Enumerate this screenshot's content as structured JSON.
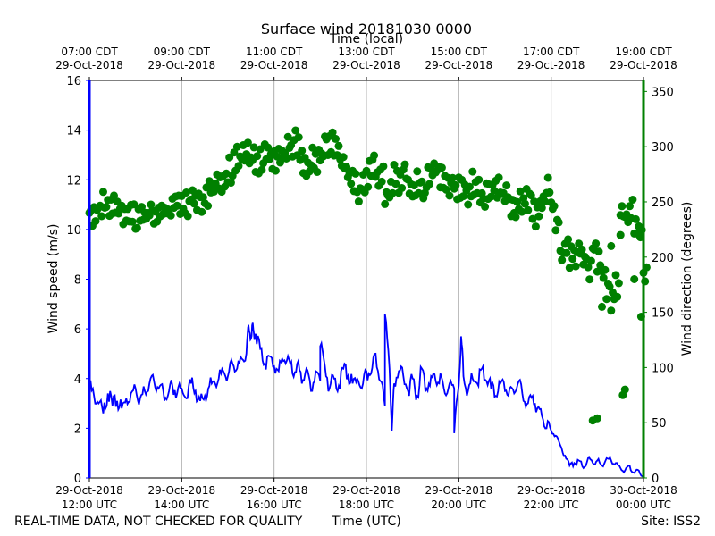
{
  "chart_data": {
    "type": "line",
    "title": "Surface wind 20181030 0000",
    "top_xlabel": "Time (local)",
    "xlabel": "Time (UTC)",
    "ylabel_left": "Wind speed (m/s)",
    "ylabel_right": "Wind direction (degrees)",
    "footer_left": "REAL-TIME DATA, NOT CHECKED FOR QUALITY",
    "footer_right": "Site: ISS2",
    "colors": {
      "speed": "#0000ff",
      "direction": "#008000",
      "grid": "#b0b0b0",
      "axis": "#000000"
    },
    "xlim_hours_utc": [
      12,
      24
    ],
    "ylim_left": [
      0,
      16
    ],
    "ylim_right": [
      0,
      360
    ],
    "grid": "vertical only",
    "left_ticks": [
      {
        "v": 0,
        "label": "0"
      },
      {
        "v": 2,
        "label": "2"
      },
      {
        "v": 4,
        "label": "4"
      },
      {
        "v": 6,
        "label": "6"
      },
      {
        "v": 8,
        "label": "8"
      },
      {
        "v": 10,
        "label": "10"
      },
      {
        "v": 12,
        "label": "12"
      },
      {
        "v": 14,
        "label": "14"
      },
      {
        "v": 16,
        "label": "16"
      }
    ],
    "right_ticks": [
      {
        "v": 0,
        "label": "0"
      },
      {
        "v": 50,
        "label": "50"
      },
      {
        "v": 100,
        "label": "100"
      },
      {
        "v": 150,
        "label": "150"
      },
      {
        "v": 200,
        "label": "200"
      },
      {
        "v": 250,
        "label": "250"
      },
      {
        "v": 300,
        "label": "300"
      },
      {
        "v": 350,
        "label": "350"
      }
    ],
    "bottom_ticks": [
      {
        "h": 12,
        "line1": "29-Oct-2018",
        "line2": "12:00 UTC"
      },
      {
        "h": 14,
        "line1": "29-Oct-2018",
        "line2": "14:00 UTC"
      },
      {
        "h": 16,
        "line1": "29-Oct-2018",
        "line2": "16:00 UTC"
      },
      {
        "h": 18,
        "line1": "29-Oct-2018",
        "line2": "18:00 UTC"
      },
      {
        "h": 20,
        "line1": "29-Oct-2018",
        "line2": "20:00 UTC"
      },
      {
        "h": 22,
        "line1": "29-Oct-2018",
        "line2": "22:00 UTC"
      },
      {
        "h": 24,
        "line1": "30-Oct-2018",
        "line2": "00:00 UTC"
      }
    ],
    "top_ticks": [
      {
        "h": 12,
        "line1": "07:00 CDT",
        "line2": "29-Oct-2018"
      },
      {
        "h": 14,
        "line1": "09:00 CDT",
        "line2": "29-Oct-2018"
      },
      {
        "h": 16,
        "line1": "11:00 CDT",
        "line2": "29-Oct-2018"
      },
      {
        "h": 18,
        "line1": "13:00 CDT",
        "line2": "29-Oct-2018"
      },
      {
        "h": 20,
        "line1": "15:00 CDT",
        "line2": "29-Oct-2018"
      },
      {
        "h": 22,
        "line1": "17:00 CDT",
        "line2": "29-Oct-2018"
      },
      {
        "h": 24,
        "line1": "19:00 CDT",
        "line2": "29-Oct-2018"
      }
    ],
    "series": [
      {
        "name": "Wind speed (m/s)",
        "axis": "left",
        "style": "line",
        "x_hours": [
          12.0,
          12.1,
          12.2,
          12.3,
          12.4,
          12.5,
          12.6,
          12.7,
          12.8,
          12.9,
          13.0,
          13.1,
          13.2,
          13.3,
          13.4,
          13.5,
          13.6,
          13.7,
          13.8,
          13.9,
          14.0,
          14.1,
          14.2,
          14.3,
          14.4,
          14.5,
          14.6,
          14.7,
          14.8,
          14.9,
          15.0,
          15.1,
          15.2,
          15.3,
          15.4,
          15.5,
          15.6,
          15.7,
          15.8,
          15.9,
          16.0,
          16.1,
          16.2,
          16.3,
          16.4,
          16.5,
          16.6,
          16.7,
          16.8,
          16.9,
          17.0,
          17.1,
          17.2,
          17.3,
          17.4,
          17.5,
          17.6,
          17.7,
          17.8,
          17.9,
          18.0,
          18.1,
          18.2,
          18.3,
          18.4,
          18.5,
          18.6,
          18.7,
          18.8,
          18.9,
          19.0,
          19.1,
          19.2,
          19.3,
          19.4,
          19.5,
          19.6,
          19.7,
          19.8,
          19.9,
          20.0,
          20.1,
          20.2,
          20.3,
          20.4,
          20.5,
          20.6,
          20.7,
          20.8,
          20.9,
          21.0,
          21.1,
          21.2,
          21.3,
          21.4,
          21.5,
          21.6,
          21.7,
          21.8,
          21.9,
          22.0,
          22.1,
          22.2,
          22.3,
          22.4,
          22.5,
          22.6,
          22.7,
          22.8,
          22.9,
          23.0,
          23.1,
          23.2,
          23.3,
          23.4,
          23.5,
          23.6,
          23.7,
          23.8,
          23.9,
          24.0
        ],
        "values": [
          3.7,
          3.3,
          3.0,
          2.6,
          3.4,
          2.9,
          3.1,
          2.8,
          3.2,
          3.4,
          3.6,
          3.2,
          3.5,
          3.8,
          3.9,
          3.6,
          3.5,
          3.3,
          3.7,
          3.4,
          3.6,
          3.2,
          3.8,
          3.5,
          3.1,
          3.3,
          3.7,
          3.9,
          4.0,
          4.3,
          4.1,
          4.6,
          4.4,
          4.8,
          5.0,
          5.6,
          5.8,
          5.2,
          4.6,
          4.9,
          4.5,
          4.3,
          4.7,
          4.9,
          4.2,
          4.6,
          3.8,
          4.4,
          3.5,
          4.3,
          3.9,
          4.5,
          3.6,
          4.0,
          3.7,
          4.4,
          4.1,
          3.8,
          4.0,
          3.6,
          4.3,
          4.2,
          5.0,
          3.9,
          2.9,
          4.4,
          3.8,
          4.3,
          4.1,
          3.5,
          4.0,
          3.3,
          4.4,
          3.6,
          4.1,
          3.9,
          4.2,
          3.4,
          3.8,
          3.6,
          3.7,
          4.1,
          3.5,
          4.0,
          3.8,
          4.4,
          3.9,
          3.6,
          3.3,
          3.8,
          3.5,
          3.6,
          3.4,
          3.9,
          3.1,
          3.0,
          3.3,
          2.8,
          2.5,
          2.0,
          1.9,
          1.7,
          1.3,
          0.9,
          0.5,
          0.6,
          0.7,
          0.4,
          0.8,
          0.6,
          0.7,
          0.5,
          0.8,
          0.7,
          0.6,
          0.4,
          0.3,
          0.5,
          0.2,
          0.3,
          0.1
        ],
        "spikes": [
          [
            15.45,
            6.1
          ],
          [
            15.55,
            6.0
          ],
          [
            17.0,
            5.3
          ],
          [
            18.4,
            6.6
          ],
          [
            18.55,
            1.9
          ],
          [
            19.9,
            1.8
          ],
          [
            20.05,
            5.7
          ]
        ]
      },
      {
        "name": "Wind direction (degrees)",
        "axis": "right",
        "style": "scatter",
        "x_hours": [
          12.0,
          12.1,
          12.2,
          12.3,
          12.4,
          12.5,
          12.6,
          12.7,
          12.8,
          12.9,
          13.0,
          13.1,
          13.2,
          13.3,
          13.4,
          13.5,
          13.6,
          13.7,
          13.8,
          13.9,
          14.0,
          14.1,
          14.2,
          14.3,
          14.4,
          14.5,
          14.6,
          14.7,
          14.8,
          14.9,
          15.0,
          15.1,
          15.2,
          15.3,
          15.4,
          15.5,
          15.6,
          15.7,
          15.8,
          15.9,
          16.0,
          16.1,
          16.2,
          16.3,
          16.4,
          16.5,
          16.6,
          16.7,
          16.8,
          16.9,
          17.0,
          17.1,
          17.2,
          17.3,
          17.4,
          17.5,
          17.6,
          17.7,
          17.8,
          17.9,
          18.0,
          18.1,
          18.2,
          18.3,
          18.4,
          18.5,
          18.6,
          18.7,
          18.8,
          18.9,
          19.0,
          19.1,
          19.2,
          19.3,
          19.4,
          19.5,
          19.6,
          19.7,
          19.8,
          19.9,
          20.0,
          20.1,
          20.2,
          20.3,
          20.4,
          20.5,
          20.6,
          20.7,
          20.8,
          20.9,
          21.0,
          21.1,
          21.2,
          21.3,
          21.4,
          21.5,
          21.6,
          21.7,
          21.8,
          21.9,
          22.0,
          22.1,
          22.2,
          22.3,
          22.4,
          22.5,
          22.6,
          22.7,
          22.8,
          22.9,
          23.0,
          23.1,
          23.2,
          23.3,
          23.4,
          23.5,
          23.6,
          23.7,
          23.8,
          23.9,
          24.0
        ],
        "values": [
          240,
          242,
          245,
          248,
          246,
          244,
          241,
          238,
          240,
          236,
          234,
          238,
          237,
          240,
          236,
          241,
          243,
          239,
          247,
          250,
          252,
          248,
          255,
          251,
          250,
          258,
          262,
          270,
          268,
          272,
          279,
          285,
          288,
          290,
          292,
          290,
          287,
          289,
          293,
          291,
          290,
          296,
          294,
          300,
          303,
          298,
          287,
          285,
          290,
          288,
          293,
          301,
          305,
          303,
          292,
          281,
          274,
          269,
          262,
          266,
          275,
          284,
          276,
          272,
          258,
          262,
          276,
          268,
          272,
          265,
          260,
          266,
          258,
          270,
          276,
          281,
          273,
          268,
          262,
          263,
          265,
          262,
          256,
          266,
          259,
          252,
          261,
          264,
          263,
          258,
          257,
          244,
          246,
          253,
          250,
          246,
          239,
          242,
          251,
          261,
          245,
          233,
          205,
          210,
          202,
          198,
          205,
          200,
          190,
          210,
          198,
          185,
          170,
          162,
          175,
          245,
          235,
          242,
          230,
          225,
          180
        ],
        "outliers": [
          [
            22.9,
            52
          ],
          [
            23.0,
            54
          ],
          [
            23.1,
            155
          ],
          [
            23.3,
            210
          ],
          [
            23.5,
            220
          ],
          [
            23.6,
            80
          ],
          [
            23.8,
            180
          ],
          [
            23.95,
            146
          ],
          [
            23.55,
            75
          ]
        ]
      }
    ]
  }
}
